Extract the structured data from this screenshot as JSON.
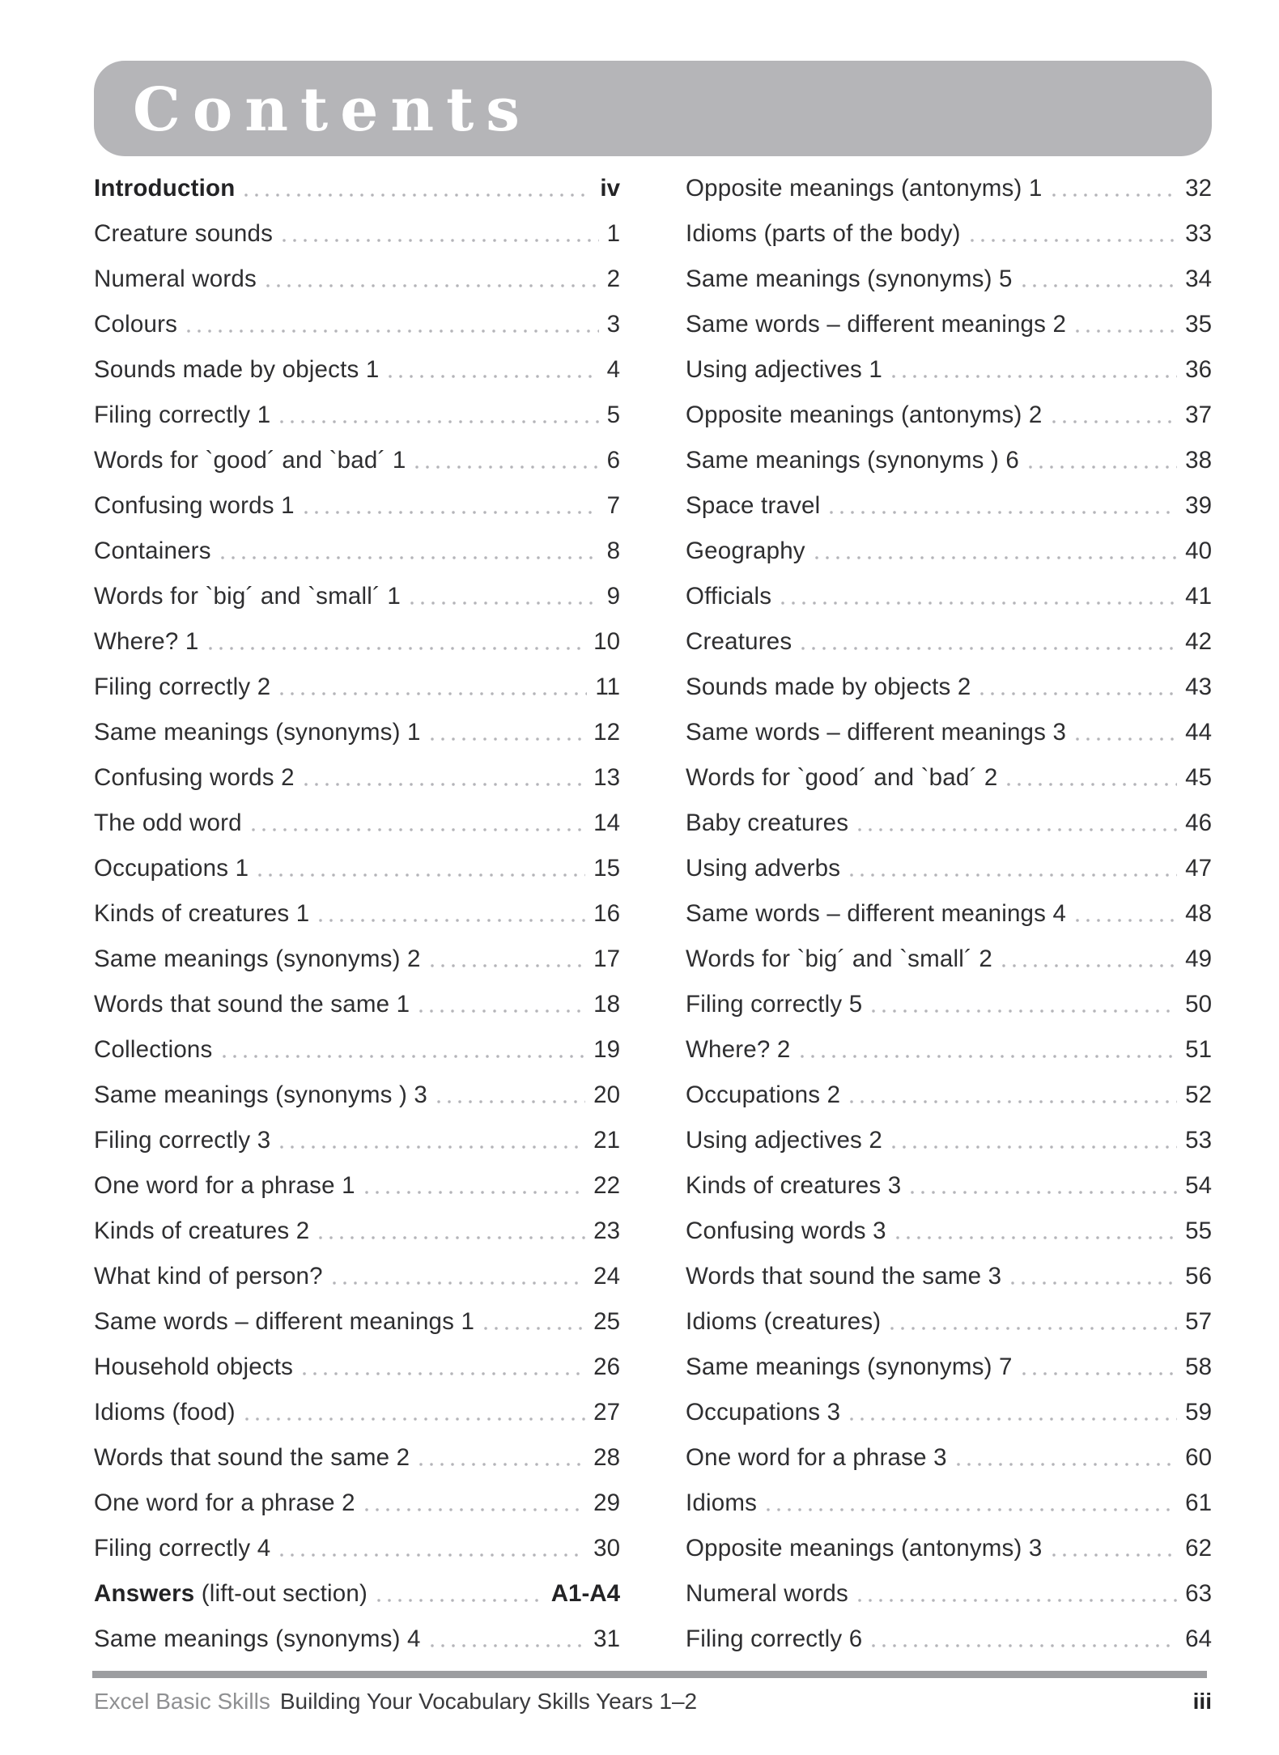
{
  "header": {
    "title": "Contents",
    "band_color": "#b5b5b8",
    "title_color": "#ffffff"
  },
  "toc": {
    "columns": [
      {
        "entries": [
          {
            "label": "Introduction",
            "page": "iv",
            "style": "bold",
            "page_bold": true
          },
          {
            "label": "Creature sounds",
            "page": "1"
          },
          {
            "label": "Numeral words",
            "page": "2"
          },
          {
            "label": "Colours",
            "page": "3"
          },
          {
            "label": "Sounds made by objects 1",
            "page": "4"
          },
          {
            "label": "Filing correctly 1",
            "page": "5"
          },
          {
            "label": "Words for `good´ and `bad´ 1",
            "page": "6"
          },
          {
            "label": "Confusing words 1",
            "page": "7"
          },
          {
            "label": "Containers",
            "page": "8"
          },
          {
            "label": "Words for `big´ and `small´ 1",
            "page": "9"
          },
          {
            "label": "Where? 1",
            "page": "10"
          },
          {
            "label": "Filing correctly 2",
            "page": "11"
          },
          {
            "label": "Same meanings (synonyms) 1",
            "page": "12"
          },
          {
            "label": "Confusing words 2",
            "page": "13"
          },
          {
            "label": "The odd word",
            "page": "14"
          },
          {
            "label": "Occupations 1",
            "page": "15"
          },
          {
            "label": "Kinds of creatures 1",
            "page": "16"
          },
          {
            "label": "Same meanings (synonyms) 2",
            "page": "17"
          },
          {
            "label": "Words that sound the same 1",
            "page": "18"
          },
          {
            "label": "Collections",
            "page": "19"
          },
          {
            "label": "Same meanings (synonyms ) 3",
            "page": "20"
          },
          {
            "label": "Filing correctly 3",
            "page": "21"
          },
          {
            "label": "One word for a phrase 1",
            "page": "22"
          },
          {
            "label": "Kinds of creatures 2",
            "page": "23"
          },
          {
            "label": "What kind of person?",
            "page": "24"
          },
          {
            "label": "Same words – different meanings 1",
            "page": "25"
          },
          {
            "label": "Household objects",
            "page": "26"
          },
          {
            "label": "Idioms (food)",
            "page": "27"
          },
          {
            "label": "Words that sound the same 2",
            "page": "28"
          },
          {
            "label": "One word for a phrase 2",
            "page": "29"
          },
          {
            "label": "Filing correctly 4",
            "page": "30"
          },
          {
            "label": "Answers (lift-out section)",
            "style": "mixed",
            "bold_part": "Answers",
            "rest_part": " (lift-out section)",
            "page": "A1-A4",
            "page_bold": true
          },
          {
            "label": "Same meanings (synonyms) 4",
            "page": "31"
          }
        ]
      },
      {
        "entries": [
          {
            "label": "Opposite meanings (antonyms) 1",
            "page": "32"
          },
          {
            "label": "Idioms (parts of the body)",
            "page": "33"
          },
          {
            "label": "Same meanings (synonyms) 5",
            "page": "34"
          },
          {
            "label": "Same words – different meanings 2",
            "page": "35"
          },
          {
            "label": "Using adjectives 1",
            "page": "36"
          },
          {
            "label": "Opposite meanings (antonyms) 2",
            "page": "37"
          },
          {
            "label": "Same meanings (synonyms ) 6",
            "page": "38"
          },
          {
            "label": "Space travel",
            "page": "39"
          },
          {
            "label": "Geography",
            "page": "40"
          },
          {
            "label": "Officials",
            "page": "41"
          },
          {
            "label": "Creatures",
            "page": "42"
          },
          {
            "label": "Sounds made by objects 2",
            "page": "43"
          },
          {
            "label": "Same words – different meanings 3",
            "page": "44"
          },
          {
            "label": "Words for `good´ and `bad´ 2",
            "page": "45"
          },
          {
            "label": "Baby creatures",
            "page": "46"
          },
          {
            "label": "Using adverbs",
            "page": "47"
          },
          {
            "label": "Same words – different meanings 4",
            "page": "48"
          },
          {
            "label": "Words for `big´ and `small´ 2",
            "page": "49"
          },
          {
            "label": "Filing correctly 5",
            "page": "50"
          },
          {
            "label": "Where? 2",
            "page": "51"
          },
          {
            "label": "Occupations 2",
            "page": "52"
          },
          {
            "label": "Using adjectives 2",
            "page": "53"
          },
          {
            "label": "Kinds of creatures 3",
            "page": "54"
          },
          {
            "label": "Confusing words 3",
            "page": "55"
          },
          {
            "label": "Words that sound the same 3",
            "page": "56"
          },
          {
            "label": "Idioms (creatures)",
            "page": "57"
          },
          {
            "label": "Same meanings (synonyms) 7",
            "page": "58"
          },
          {
            "label": "Occupations 3",
            "page": "59"
          },
          {
            "label": "One word for a phrase 3",
            "page": "60"
          },
          {
            "label": "Idioms",
            "page": "61"
          },
          {
            "label": "Opposite meanings (antonyms) 3",
            "page": "62"
          },
          {
            "label": "Numeral words",
            "page": "63"
          },
          {
            "label": "Filing correctly 6",
            "page": "64"
          }
        ]
      }
    ]
  },
  "footer": {
    "series": "Excel Basic Skills",
    "book_title": "Building Your Vocabulary Skills Years 1–2",
    "page_number": "iii",
    "rule_color": "#9c9da0"
  }
}
